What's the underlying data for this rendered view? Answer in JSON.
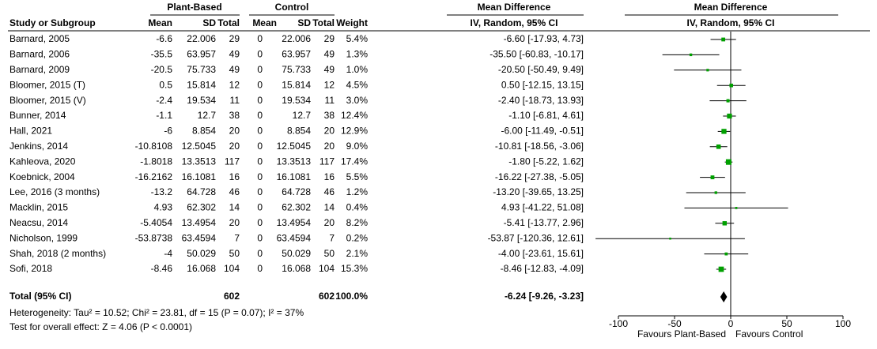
{
  "chart_data": {
    "type": "forest",
    "group_headers": [
      "Plant-Based",
      "Control",
      "Mean Difference",
      "Mean Difference"
    ],
    "columns": [
      "Study or Subgroup",
      "Mean",
      "SD",
      "Total",
      "Mean",
      "SD",
      "Total",
      "Weight",
      "IV, Random, 95% CI",
      "IV, Random, 95% CI"
    ],
    "studies": [
      {
        "name": "Barnard, 2005",
        "mean1": -6.6,
        "sd1": 22.006,
        "n1": 29,
        "mean2": 0,
        "sd2": 22.006,
        "n2": 29,
        "weight": 5.4,
        "weight_label": "5.4%",
        "md": -6.6,
        "lower": -17.93,
        "upper": 4.73,
        "ci_label": "-6.60 [-17.93, 4.73]"
      },
      {
        "name": "Barnard, 2006",
        "mean1": -35.5,
        "sd1": 63.957,
        "n1": 49,
        "mean2": 0,
        "sd2": 63.957,
        "n2": 49,
        "weight": 1.3,
        "weight_label": "1.3%",
        "md": -35.5,
        "lower": -60.83,
        "upper": -10.17,
        "ci_label": "-35.50 [-60.83, -10.17]"
      },
      {
        "name": "Barnard, 2009",
        "mean1": -20.5,
        "sd1": 75.733,
        "n1": 49,
        "mean2": 0,
        "sd2": 75.733,
        "n2": 49,
        "weight": 1.0,
        "weight_label": "1.0%",
        "md": -20.5,
        "lower": -50.49,
        "upper": 9.49,
        "ci_label": "-20.50 [-50.49, 9.49]"
      },
      {
        "name": "Bloomer, 2015 (T)",
        "mean1": 0.5,
        "sd1": 15.814,
        "n1": 12,
        "mean2": 0,
        "sd2": 15.814,
        "n2": 12,
        "weight": 4.5,
        "weight_label": "4.5%",
        "md": 0.5,
        "lower": -12.15,
        "upper": 13.15,
        "ci_label": "0.50 [-12.15, 13.15]"
      },
      {
        "name": "Bloomer, 2015 (V)",
        "mean1": -2.4,
        "sd1": 19.534,
        "n1": 11,
        "mean2": 0,
        "sd2": 19.534,
        "n2": 11,
        "weight": 3.0,
        "weight_label": "3.0%",
        "md": -2.4,
        "lower": -18.73,
        "upper": 13.93,
        "ci_label": "-2.40 [-18.73, 13.93]"
      },
      {
        "name": "Bunner, 2014",
        "mean1": -1.1,
        "sd1": 12.7,
        "n1": 38,
        "mean2": 0,
        "sd2": 12.7,
        "n2": 38,
        "weight": 12.4,
        "weight_label": "12.4%",
        "md": -1.1,
        "lower": -6.81,
        "upper": 4.61,
        "ci_label": "-1.10 [-6.81, 4.61]"
      },
      {
        "name": "Hall, 2021",
        "mean1": -6,
        "sd1": 8.854,
        "n1": 20,
        "mean2": 0,
        "sd2": 8.854,
        "n2": 20,
        "weight": 12.9,
        "weight_label": "12.9%",
        "md": -6,
        "lower": -11.49,
        "upper": -0.51,
        "ci_label": "-6.00 [-11.49, -0.51]"
      },
      {
        "name": "Jenkins, 2014",
        "mean1": -10.8108,
        "sd1": 12.5045,
        "n1": 20,
        "mean2": 0,
        "sd2": 12.5045,
        "n2": 20,
        "weight": 9.0,
        "weight_label": "9.0%",
        "md": -10.81,
        "lower": -18.56,
        "upper": -3.06,
        "ci_label": "-10.81 [-18.56, -3.06]"
      },
      {
        "name": "Kahleova, 2020",
        "mean1": -1.8018,
        "sd1": 13.3513,
        "n1": 117,
        "mean2": 0,
        "sd2": 13.3513,
        "n2": 117,
        "weight": 17.4,
        "weight_label": "17.4%",
        "md": -1.8,
        "lower": -5.22,
        "upper": 1.62,
        "ci_label": "-1.80 [-5.22, 1.62]"
      },
      {
        "name": "Koebnick, 2004",
        "mean1": -16.2162,
        "sd1": 16.1081,
        "n1": 16,
        "mean2": 0,
        "sd2": 16.1081,
        "n2": 16,
        "weight": 5.5,
        "weight_label": "5.5%",
        "md": -16.22,
        "lower": -27.38,
        "upper": -5.05,
        "ci_label": "-16.22 [-27.38, -5.05]"
      },
      {
        "name": "Lee, 2016 (3 months)",
        "mean1": -13.2,
        "sd1": 64.728,
        "n1": 46,
        "mean2": 0,
        "sd2": 64.728,
        "n2": 46,
        "weight": 1.2,
        "weight_label": "1.2%",
        "md": -13.2,
        "lower": -39.65,
        "upper": 13.25,
        "ci_label": "-13.20 [-39.65, 13.25]"
      },
      {
        "name": "Macklin, 2015",
        "mean1": 4.93,
        "sd1": 62.302,
        "n1": 14,
        "mean2": 0,
        "sd2": 62.302,
        "n2": 14,
        "weight": 0.4,
        "weight_label": "0.4%",
        "md": 4.93,
        "lower": -41.22,
        "upper": 51.08,
        "ci_label": "4.93 [-41.22, 51.08]"
      },
      {
        "name": "Neacsu, 2014",
        "mean1": -5.4054,
        "sd1": 13.4954,
        "n1": 20,
        "mean2": 0,
        "sd2": 13.4954,
        "n2": 20,
        "weight": 8.2,
        "weight_label": "8.2%",
        "md": -5.41,
        "lower": -13.77,
        "upper": 2.96,
        "ci_label": "-5.41 [-13.77, 2.96]"
      },
      {
        "name": "Nicholson, 1999",
        "mean1": -53.8738,
        "sd1": 63.4594,
        "n1": 7,
        "mean2": 0,
        "sd2": 63.4594,
        "n2": 7,
        "weight": 0.2,
        "weight_label": "0.2%",
        "md": -53.87,
        "lower": -120.36,
        "upper": 12.61,
        "ci_label": "-53.87 [-120.36, 12.61]"
      },
      {
        "name": "Shah, 2018 (2 months)",
        "mean1": -4,
        "sd1": 50.029,
        "n1": 50,
        "mean2": 0,
        "sd2": 50.029,
        "n2": 50,
        "weight": 2.1,
        "weight_label": "2.1%",
        "md": -4,
        "lower": -23.61,
        "upper": 15.61,
        "ci_label": "-4.00 [-23.61, 15.61]"
      },
      {
        "name": "Sofi, 2018",
        "mean1": -8.46,
        "sd1": 16.068,
        "n1": 104,
        "mean2": 0,
        "sd2": 16.068,
        "n2": 104,
        "weight": 15.3,
        "weight_label": "15.3%",
        "md": -8.46,
        "lower": -12.83,
        "upper": -4.09,
        "ci_label": "-8.46 [-12.83, -4.09]"
      }
    ],
    "total": {
      "name": "Total (95% CI)",
      "n1": 602,
      "n2": 602,
      "weight": 100,
      "weight_label": "100.0%",
      "md": -6.24,
      "lower": -9.26,
      "upper": -3.23,
      "ci_label": "-6.24 [-9.26, -3.23]"
    },
    "heterogeneity": "Heterogeneity: Tau² = 10.52; Chi² = 23.81, df = 15 (P = 0.07); I² = 37%",
    "overall_effect": "Test for overall effect: Z = 4.06 (P < 0.0001)",
    "xlim": [
      -100,
      100
    ],
    "xticks": [
      -100,
      -50,
      0,
      50,
      100
    ],
    "x_labels": [
      "Favours Plant-Based",
      "Favours Control"
    ],
    "color": "#00a000"
  }
}
